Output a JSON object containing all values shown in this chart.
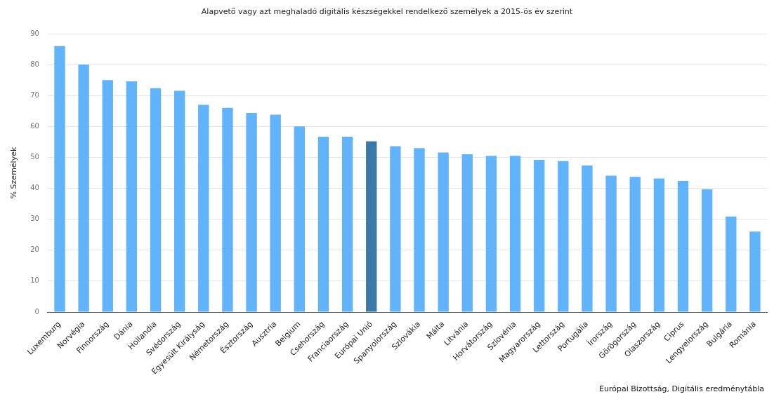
{
  "chart_data": {
    "type": "bar",
    "title": "Alapvető vagy azt meghaladó digitális készségekkel rendelkező személyek a 2015-ös év szerint",
    "ylabel": "% Személyek",
    "categories": [
      "Luxemburg",
      "Norvégia",
      "Finnország",
      "Dánia",
      "Hollandia",
      "Svédország",
      "Egyesült Királyság",
      "Németország",
      "Észtország",
      "Ausztria",
      "Belgium",
      "Csehország",
      "Franciaország",
      "Európai Unió",
      "Spanyolország",
      "Szlovákia",
      "Málta",
      "Litvánia",
      "Horvátország",
      "Szlovénia",
      "Magyarország",
      "Lettország",
      "Portugália",
      "Írország",
      "Görögország",
      "Olaszország",
      "Ciprus",
      "Lengyelország",
      "Bulgária",
      "Románia"
    ],
    "values": [
      86,
      80,
      75,
      74.6,
      72.4,
      71.5,
      67,
      66,
      64.4,
      63.8,
      60,
      56.7,
      56.7,
      55.2,
      53.6,
      53,
      51.6,
      51,
      50.5,
      50.5,
      49.2,
      48.8,
      47.4,
      44.1,
      43.7,
      43.2,
      42.4,
      39.7,
      30.9,
      26
    ],
    "colors": [
      "#61b3fc",
      "#61b3fc",
      "#61b3fc",
      "#61b3fc",
      "#61b3fc",
      "#61b3fc",
      "#61b3fc",
      "#61b3fc",
      "#61b3fc",
      "#61b3fc",
      "#61b3fc",
      "#61b3fc",
      "#61b3fc",
      "#3b79a8",
      "#61b3fc",
      "#61b3fc",
      "#61b3fc",
      "#61b3fc",
      "#61b3fc",
      "#61b3fc",
      "#61b3fc",
      "#61b3fc",
      "#61b3fc",
      "#61b3fc",
      "#61b3fc",
      "#61b3fc",
      "#61b3fc",
      "#61b3fc",
      "#61b3fc",
      "#61b3fc"
    ],
    "ylim": [
      0,
      90
    ],
    "yticks": [
      0,
      10,
      20,
      30,
      40,
      50,
      60,
      70,
      80,
      90
    ],
    "grid": "y",
    "legend": false,
    "annotations": [
      "Európai Bizottság, Digitális eredménytábla"
    ]
  }
}
